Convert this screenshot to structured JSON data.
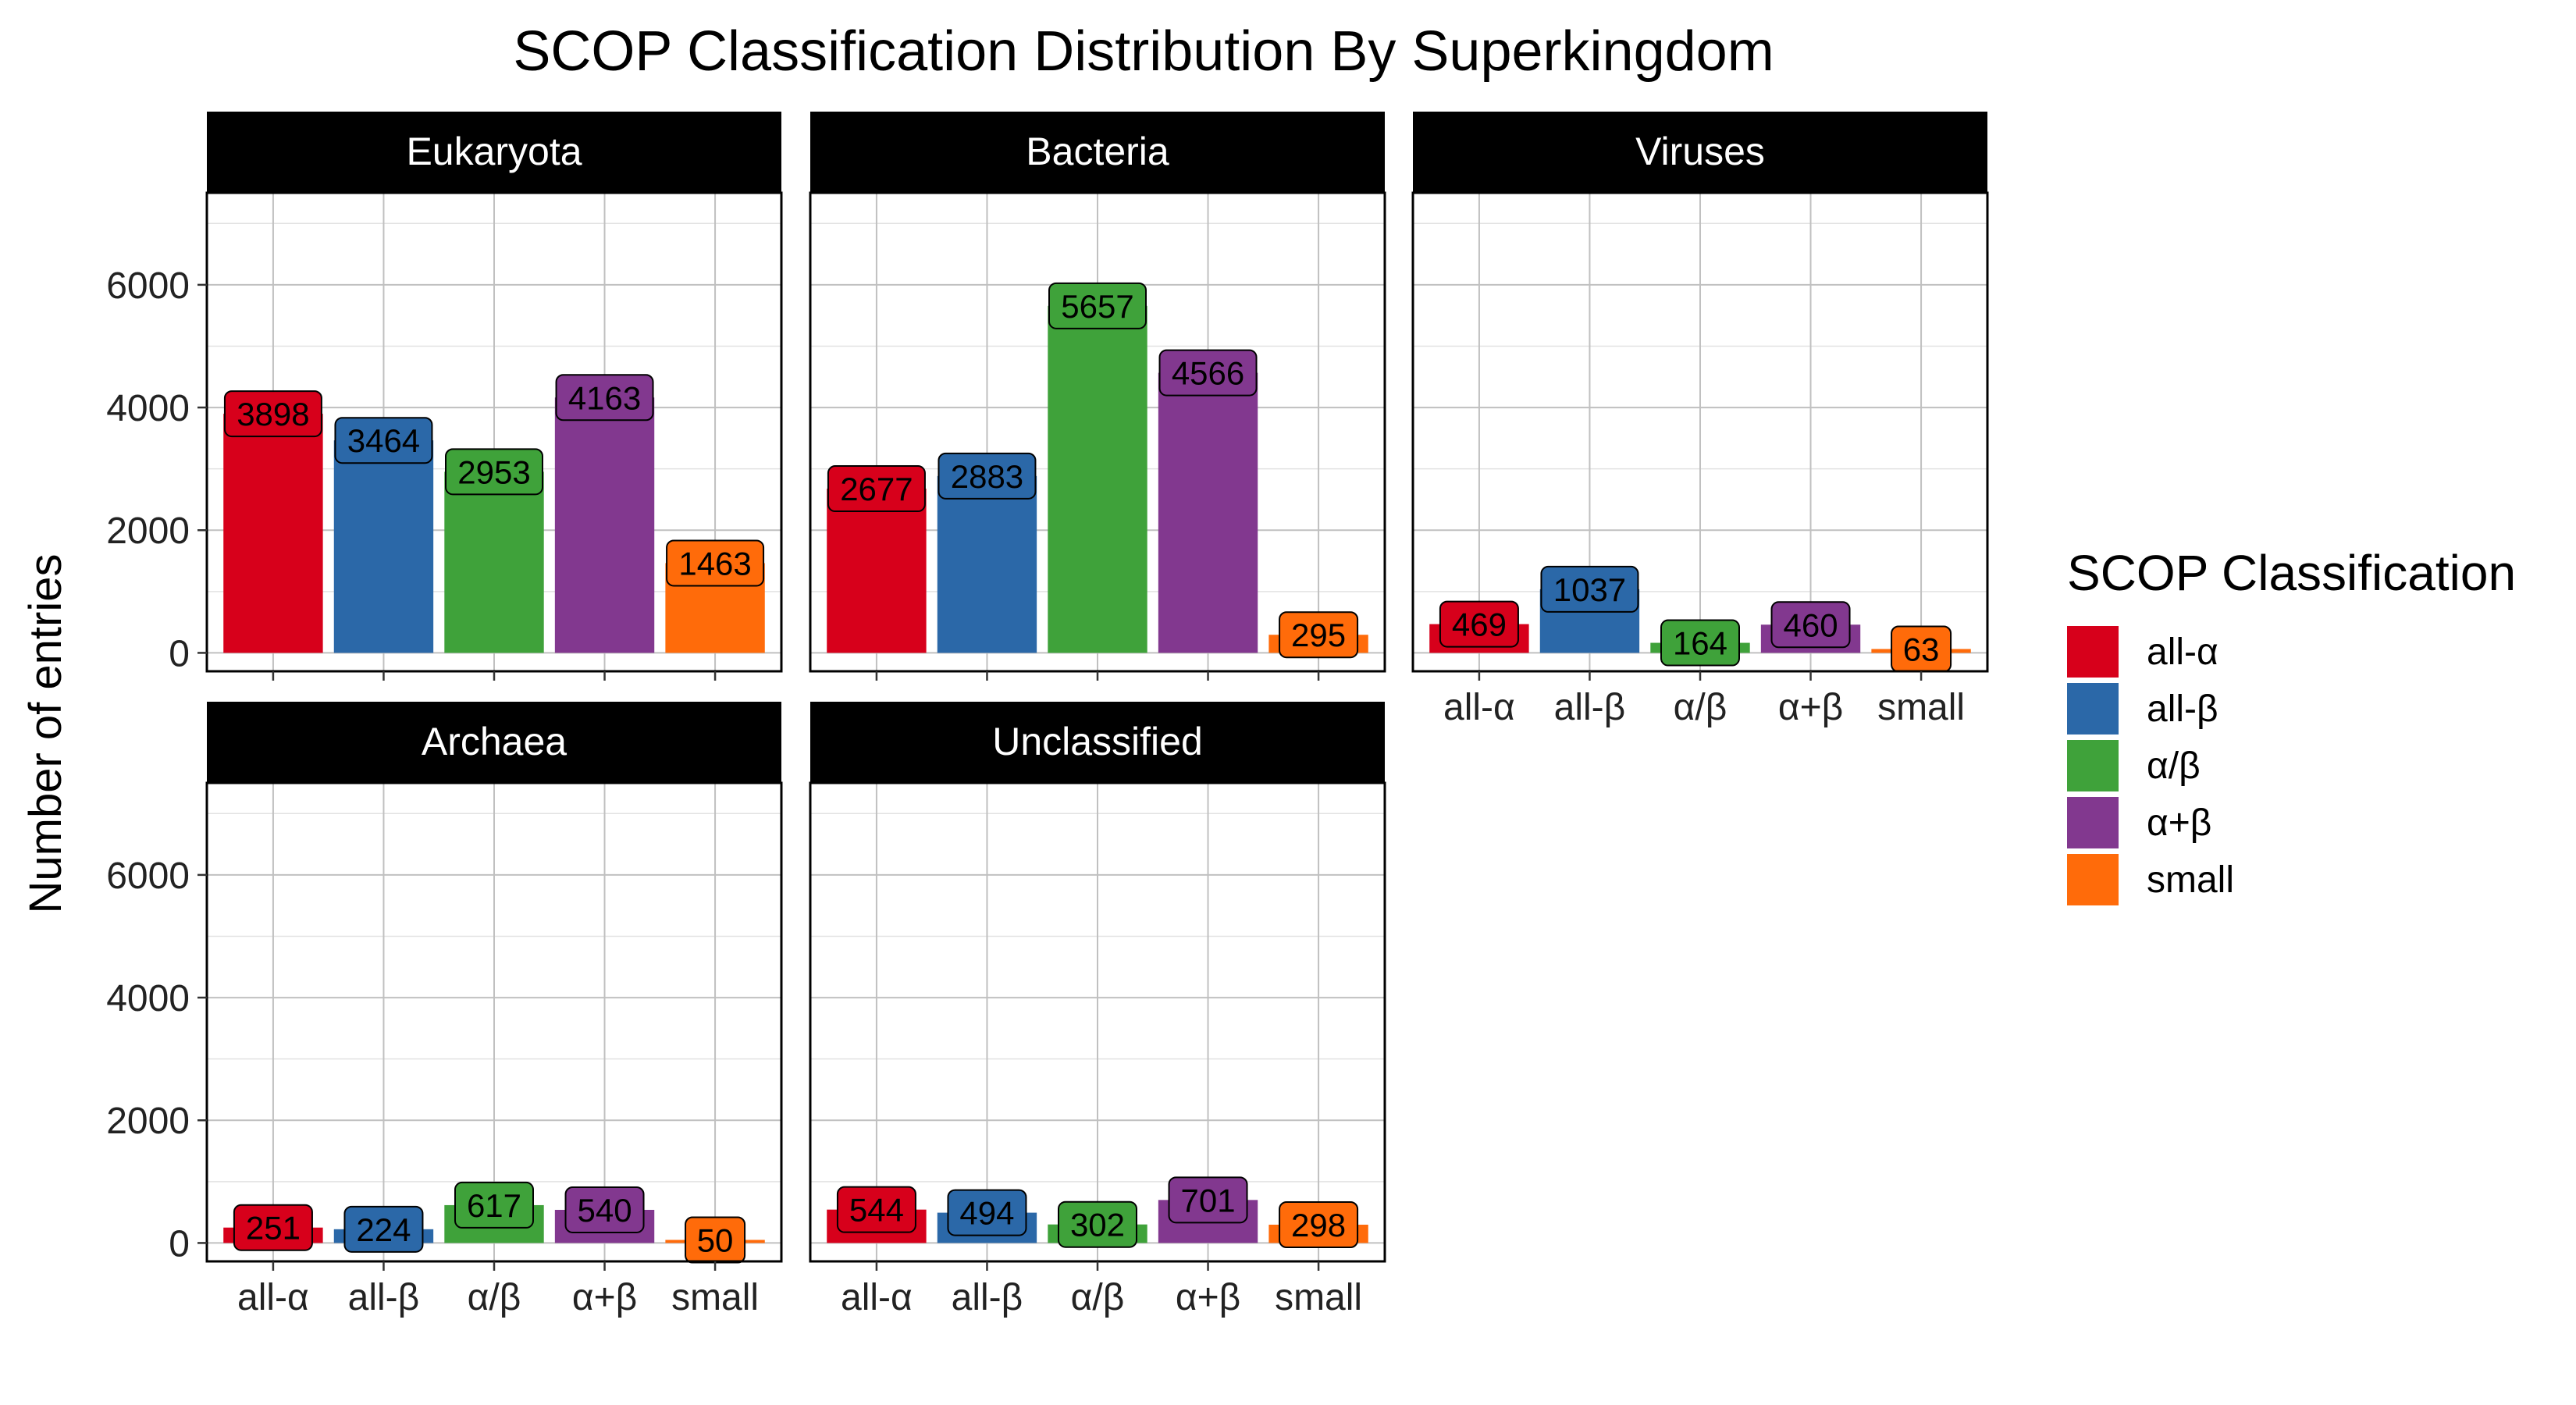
{
  "chart_data": {
    "type": "bar",
    "title": "SCOP Classification Distribution By Superkingdom",
    "ylabel": "Number of entries",
    "xlabel": "",
    "ylim": [
      -300,
      7500
    ],
    "yticks": [
      0,
      2000,
      4000,
      6000
    ],
    "categories": [
      "all-α",
      "all-β",
      "α/β",
      "α+β",
      "small"
    ],
    "colors": [
      "#d7001b",
      "#2b68a8",
      "#3fa23a",
      "#82388f",
      "#ff6b0a"
    ],
    "legend": {
      "title": "SCOP Classification",
      "position": "right",
      "entries": [
        "all-α",
        "all-β",
        "α/β",
        "α+β",
        "small"
      ]
    },
    "grid": true,
    "facets": [
      {
        "name": "Eukaryota",
        "values": [
          3898,
          3464,
          2953,
          4163,
          1463
        ]
      },
      {
        "name": "Bacteria",
        "values": [
          2677,
          2883,
          5657,
          4566,
          295
        ]
      },
      {
        "name": "Viruses",
        "values": [
          469,
          1037,
          164,
          460,
          63
        ]
      },
      {
        "name": "Archaea",
        "values": [
          251,
          224,
          617,
          540,
          50
        ]
      },
      {
        "name": "Unclassified",
        "values": [
          544,
          494,
          302,
          701,
          298
        ]
      }
    ]
  }
}
